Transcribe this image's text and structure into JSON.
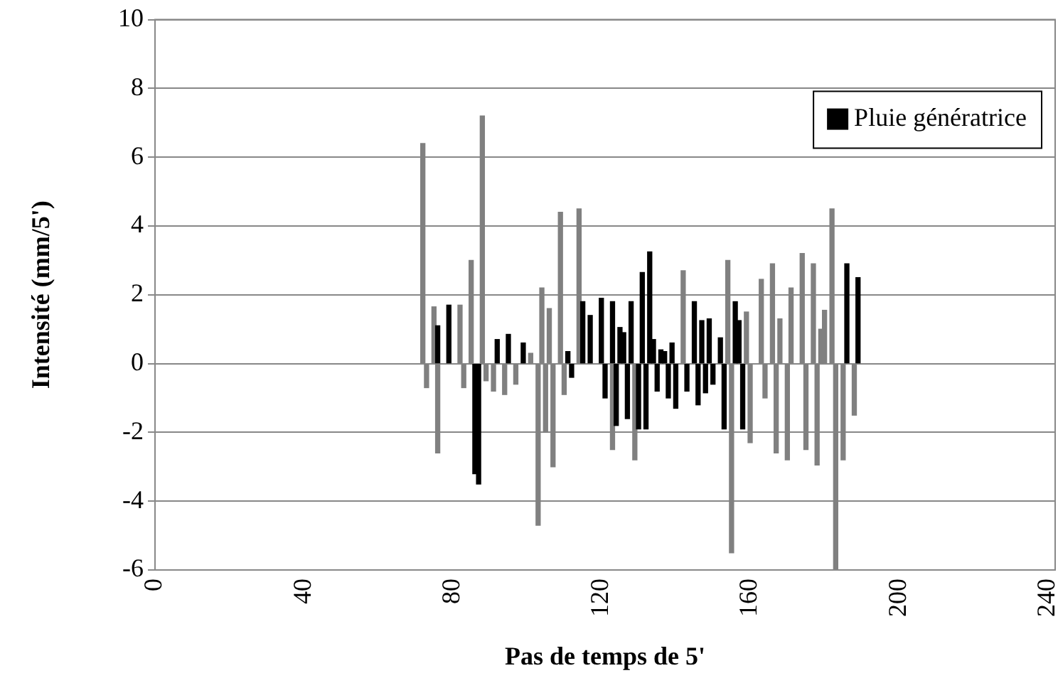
{
  "chart_data": {
    "type": "bar",
    "xlabel": "Pas de temps de 5'",
    "ylabel": "Intensité (mm/5')",
    "xlim": [
      0,
      242
    ],
    "xticks": [
      0,
      40,
      80,
      120,
      160,
      200,
      240
    ],
    "ylim": [
      -6,
      10
    ],
    "yticks": [
      -6,
      -4,
      -2,
      0,
      2,
      4,
      6,
      8,
      10
    ],
    "grid": "y",
    "legend": "top right",
    "series": [
      {
        "color": "#808080",
        "x": [
          72,
          73,
          75,
          76,
          82,
          83,
          85,
          88,
          89,
          91,
          94,
          97,
          101,
          103,
          104,
          105,
          106,
          107,
          109,
          110,
          114,
          123,
          129,
          142,
          154,
          155,
          159,
          160,
          163,
          164,
          166,
          167,
          168,
          170,
          171,
          174,
          175,
          177,
          178,
          179,
          180,
          182,
          183,
          185,
          188
        ],
        "values": [
          6.4,
          -0.7,
          1.65,
          -2.6,
          1.7,
          -0.7,
          3.0,
          7.2,
          -0.5,
          -0.8,
          -0.9,
          -0.6,
          0.3,
          -4.7,
          2.2,
          -2.0,
          1.6,
          -3.0,
          4.4,
          -0.9,
          4.5,
          -2.5,
          -2.8,
          2.7,
          3.0,
          -5.5,
          1.5,
          -2.3,
          2.45,
          -1.0,
          2.9,
          -2.6,
          1.3,
          -2.8,
          2.2,
          3.2,
          -2.5,
          2.9,
          -2.95,
          1.0,
          1.55,
          4.5,
          -6.0,
          -2.8,
          -1.5
        ]
      },
      {
        "name": "Pluie génératrice",
        "color": "#000000",
        "x": [
          76,
          79,
          86,
          87,
          92,
          95,
          99,
          111,
          112,
          115,
          117,
          120,
          121,
          123,
          124,
          125,
          126,
          127,
          128,
          130,
          131,
          132,
          133,
          134,
          135,
          136,
          137,
          138,
          139,
          140,
          143,
          145,
          146,
          147,
          148,
          149,
          150,
          152,
          153,
          156,
          157,
          158,
          186,
          189
        ],
        "values": [
          1.1,
          1.7,
          -3.2,
          -3.5,
          0.7,
          0.85,
          0.6,
          0.35,
          -0.4,
          1.8,
          1.4,
          1.9,
          -1.0,
          1.8,
          -1.8,
          1.05,
          0.9,
          -1.6,
          1.8,
          -1.9,
          2.65,
          -1.9,
          3.25,
          0.7,
          -0.8,
          0.4,
          0.35,
          -1.0,
          0.6,
          -1.3,
          -0.8,
          1.8,
          -1.2,
          1.25,
          -0.85,
          1.3,
          -0.6,
          0.75,
          -1.9,
          1.8,
          1.25,
          -1.9,
          2.9,
          2.5
        ]
      }
    ]
  }
}
